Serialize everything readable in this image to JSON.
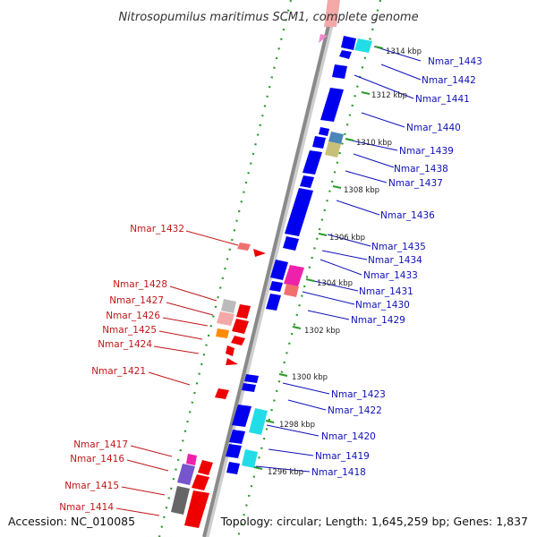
{
  "title": "Nitrosopumilus maritimus SCM1, complete genome",
  "footer": {
    "accession": "Accession: NC_010085",
    "topology": "Topology: circular; Length: 1,645,259 bp; Genes: 1,837"
  },
  "kbp_ticks": [
    "1314 kbp",
    "1312 kbp",
    "1310 kbp",
    "1308 kbp",
    "1306 kbp",
    "1304 kbp",
    "1302 kbp",
    "1300 kbp",
    "1298 kbp",
    "1296 kbp"
  ],
  "forward_genes": [
    "Nmar_1443",
    "Nmar_1442",
    "Nmar_1441",
    "Nmar_1440",
    "Nmar_1439",
    "Nmar_1438",
    "Nmar_1437",
    "Nmar_1436",
    "Nmar_1435",
    "Nmar_1434",
    "Nmar_1433",
    "Nmar_1431",
    "Nmar_1430",
    "Nmar_1429",
    "Nmar_1423",
    "Nmar_1422",
    "Nmar_1420",
    "Nmar_1419",
    "Nmar_1418"
  ],
  "reverse_genes": [
    "Nmar_1432",
    "Nmar_1428",
    "Nmar_1427",
    "Nmar_1426",
    "Nmar_1425",
    "Nmar_1424",
    "Nmar_1421",
    "Nmar_1417",
    "Nmar_1416",
    "Nmar_1415",
    "Nmar_1414"
  ],
  "colors": {
    "forward": "#0000ee",
    "reverse": "#ee0000",
    "backbone": "#8c8c8c",
    "dots": "#2a9a2a",
    "cyan": "#22dde8",
    "magenta": "#ee22aa",
    "orange": "#ff8c00",
    "purple": "#7755cc",
    "grey": "#666666",
    "steel": "#4a86b8",
    "khaki": "#c8c078",
    "pink": "#f4a8a8",
    "salmon": "#f07070"
  }
}
